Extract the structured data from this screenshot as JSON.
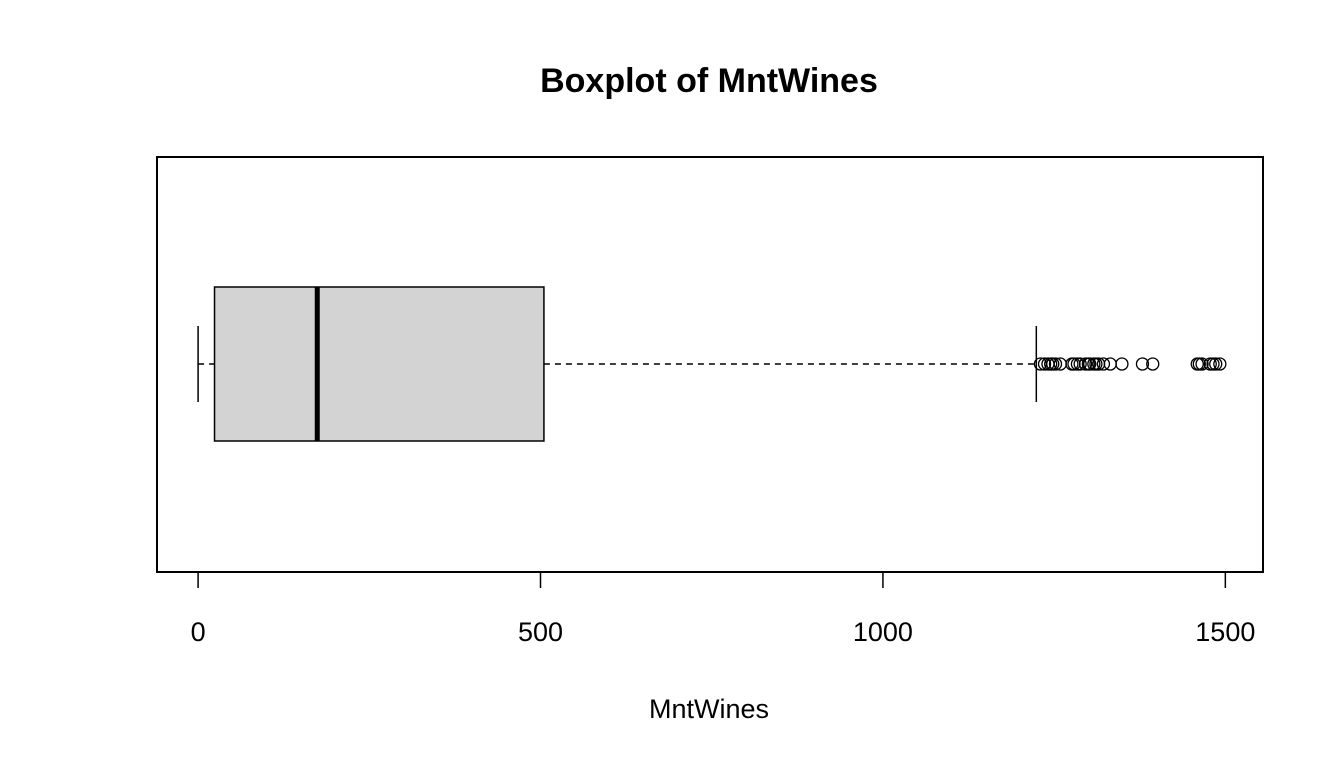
{
  "chart_data": {
    "type": "boxplot",
    "orientation": "horizontal",
    "title": "Boxplot of MntWines",
    "xlabel": "MntWines",
    "ylabel": "",
    "xlim": [
      -60,
      1555
    ],
    "xticks": [
      0,
      500,
      1000,
      1500
    ],
    "xtick_labels": [
      "0",
      "500",
      "1000",
      "1500"
    ],
    "box": {
      "whisker_low": 0,
      "q1": 24,
      "median": 174,
      "q3": 505,
      "whisker_high": 1224
    },
    "outliers": [
      1230,
      1236,
      1241,
      1245,
      1248,
      1252,
      1259,
      1276,
      1279,
      1284,
      1288,
      1296,
      1300,
      1302,
      1308,
      1311,
      1315,
      1322,
      1332,
      1349,
      1379,
      1394,
      1459,
      1462,
      1466,
      1478,
      1482,
      1486,
      1492
    ],
    "grid": false,
    "legend": "none",
    "colors": {
      "box_fill": "#d3d3d3",
      "stroke": "#000000",
      "background": "#ffffff"
    }
  }
}
